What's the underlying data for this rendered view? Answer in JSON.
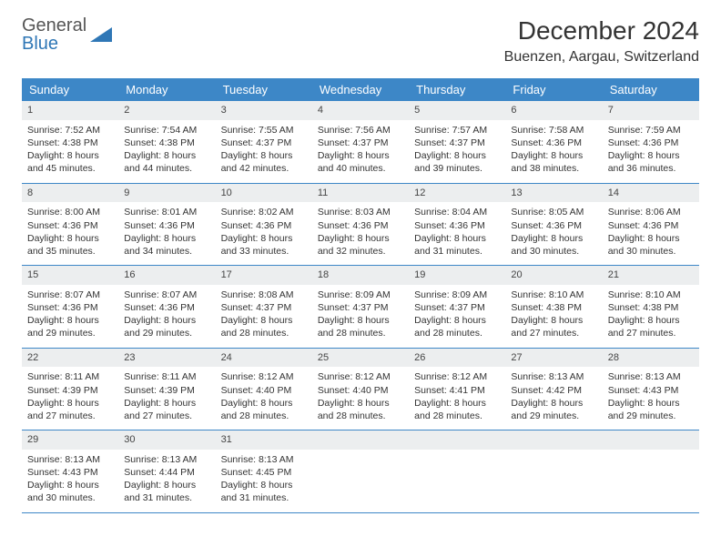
{
  "logo": {
    "line1": "General",
    "line2": "Blue"
  },
  "title": "December 2024",
  "location": "Buenzen, Aargau, Switzerland",
  "colors": {
    "header_bg": "#3d87c7",
    "header_text": "#ffffff",
    "daynum_bg": "#eceeef",
    "border": "#3d87c7",
    "logo_gray": "#555555",
    "logo_blue": "#2f77b6"
  },
  "day_names": [
    "Sunday",
    "Monday",
    "Tuesday",
    "Wednesday",
    "Thursday",
    "Friday",
    "Saturday"
  ],
  "weeks": [
    [
      {
        "n": "1",
        "sr": "7:52 AM",
        "ss": "4:38 PM",
        "dl": "8 hours and 45 minutes."
      },
      {
        "n": "2",
        "sr": "7:54 AM",
        "ss": "4:38 PM",
        "dl": "8 hours and 44 minutes."
      },
      {
        "n": "3",
        "sr": "7:55 AM",
        "ss": "4:37 PM",
        "dl": "8 hours and 42 minutes."
      },
      {
        "n": "4",
        "sr": "7:56 AM",
        "ss": "4:37 PM",
        "dl": "8 hours and 40 minutes."
      },
      {
        "n": "5",
        "sr": "7:57 AM",
        "ss": "4:37 PM",
        "dl": "8 hours and 39 minutes."
      },
      {
        "n": "6",
        "sr": "7:58 AM",
        "ss": "4:36 PM",
        "dl": "8 hours and 38 minutes."
      },
      {
        "n": "7",
        "sr": "7:59 AM",
        "ss": "4:36 PM",
        "dl": "8 hours and 36 minutes."
      }
    ],
    [
      {
        "n": "8",
        "sr": "8:00 AM",
        "ss": "4:36 PM",
        "dl": "8 hours and 35 minutes."
      },
      {
        "n": "9",
        "sr": "8:01 AM",
        "ss": "4:36 PM",
        "dl": "8 hours and 34 minutes."
      },
      {
        "n": "10",
        "sr": "8:02 AM",
        "ss": "4:36 PM",
        "dl": "8 hours and 33 minutes."
      },
      {
        "n": "11",
        "sr": "8:03 AM",
        "ss": "4:36 PM",
        "dl": "8 hours and 32 minutes."
      },
      {
        "n": "12",
        "sr": "8:04 AM",
        "ss": "4:36 PM",
        "dl": "8 hours and 31 minutes."
      },
      {
        "n": "13",
        "sr": "8:05 AM",
        "ss": "4:36 PM",
        "dl": "8 hours and 30 minutes."
      },
      {
        "n": "14",
        "sr": "8:06 AM",
        "ss": "4:36 PM",
        "dl": "8 hours and 30 minutes."
      }
    ],
    [
      {
        "n": "15",
        "sr": "8:07 AM",
        "ss": "4:36 PM",
        "dl": "8 hours and 29 minutes."
      },
      {
        "n": "16",
        "sr": "8:07 AM",
        "ss": "4:36 PM",
        "dl": "8 hours and 29 minutes."
      },
      {
        "n": "17",
        "sr": "8:08 AM",
        "ss": "4:37 PM",
        "dl": "8 hours and 28 minutes."
      },
      {
        "n": "18",
        "sr": "8:09 AM",
        "ss": "4:37 PM",
        "dl": "8 hours and 28 minutes."
      },
      {
        "n": "19",
        "sr": "8:09 AM",
        "ss": "4:37 PM",
        "dl": "8 hours and 28 minutes."
      },
      {
        "n": "20",
        "sr": "8:10 AM",
        "ss": "4:38 PM",
        "dl": "8 hours and 27 minutes."
      },
      {
        "n": "21",
        "sr": "8:10 AM",
        "ss": "4:38 PM",
        "dl": "8 hours and 27 minutes."
      }
    ],
    [
      {
        "n": "22",
        "sr": "8:11 AM",
        "ss": "4:39 PM",
        "dl": "8 hours and 27 minutes."
      },
      {
        "n": "23",
        "sr": "8:11 AM",
        "ss": "4:39 PM",
        "dl": "8 hours and 27 minutes."
      },
      {
        "n": "24",
        "sr": "8:12 AM",
        "ss": "4:40 PM",
        "dl": "8 hours and 28 minutes."
      },
      {
        "n": "25",
        "sr": "8:12 AM",
        "ss": "4:40 PM",
        "dl": "8 hours and 28 minutes."
      },
      {
        "n": "26",
        "sr": "8:12 AM",
        "ss": "4:41 PM",
        "dl": "8 hours and 28 minutes."
      },
      {
        "n": "27",
        "sr": "8:13 AM",
        "ss": "4:42 PM",
        "dl": "8 hours and 29 minutes."
      },
      {
        "n": "28",
        "sr": "8:13 AM",
        "ss": "4:43 PM",
        "dl": "8 hours and 29 minutes."
      }
    ],
    [
      {
        "n": "29",
        "sr": "8:13 AM",
        "ss": "4:43 PM",
        "dl": "8 hours and 30 minutes."
      },
      {
        "n": "30",
        "sr": "8:13 AM",
        "ss": "4:44 PM",
        "dl": "8 hours and 31 minutes."
      },
      {
        "n": "31",
        "sr": "8:13 AM",
        "ss": "4:45 PM",
        "dl": "8 hours and 31 minutes."
      },
      null,
      null,
      null,
      null
    ]
  ],
  "labels": {
    "sunrise": "Sunrise:",
    "sunset": "Sunset:",
    "daylight": "Daylight:"
  }
}
